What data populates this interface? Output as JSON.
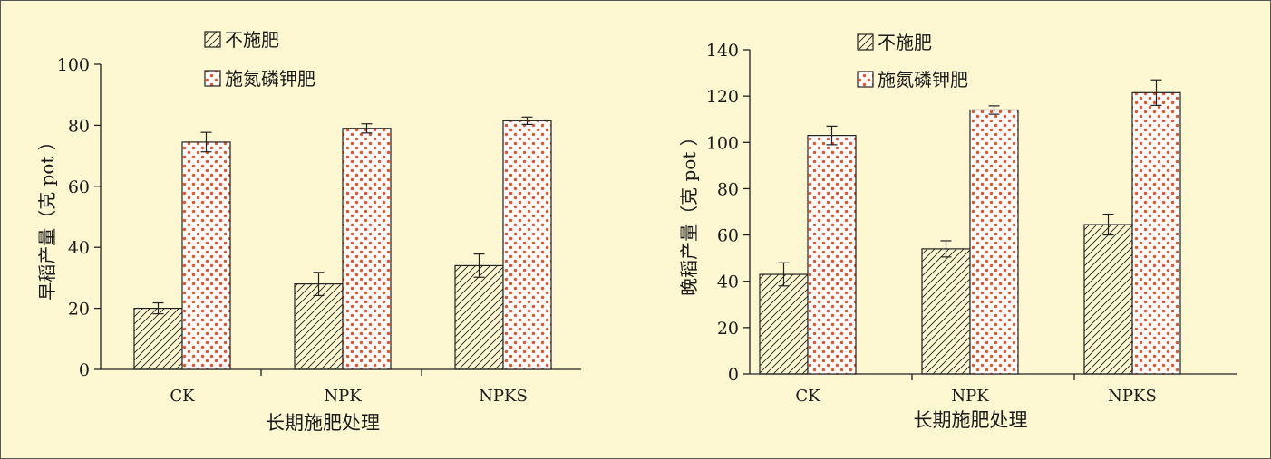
{
  "chart_data": [
    {
      "type": "bar",
      "xlabel": "长期施肥处理",
      "ylabel": "早稻产量（克 pot ）",
      "categories": [
        "CK",
        "NPK",
        "NPKS"
      ],
      "ylim": [
        0,
        100
      ],
      "yticks": [
        0,
        20,
        40,
        60,
        80,
        100
      ],
      "legend_position": "top-center",
      "series": [
        {
          "name": "不施肥",
          "pattern": "hatch",
          "values": [
            20,
            28,
            34
          ],
          "errors": [
            1.8,
            3.8,
            3.8
          ]
        },
        {
          "name": "施氮磷钾肥",
          "pattern": "dots",
          "color": "#e8542a",
          "values": [
            74.5,
            79,
            81.5
          ],
          "errors": [
            3.2,
            1.5,
            1.2
          ]
        }
      ]
    },
    {
      "type": "bar",
      "xlabel": "长期施肥处理",
      "ylabel": "晚稻产量（克 pot ）",
      "categories": [
        "CK",
        "NPK",
        "NPKS"
      ],
      "ylim": [
        0,
        140
      ],
      "yticks": [
        0,
        20,
        40,
        60,
        80,
        100,
        120,
        140
      ],
      "legend_position": "top-center",
      "series": [
        {
          "name": "不施肥",
          "pattern": "hatch",
          "values": [
            43,
            54,
            64.5
          ],
          "errors": [
            5,
            3.5,
            4.5
          ]
        },
        {
          "name": "施氮磷钾肥",
          "pattern": "dots",
          "color": "#e8542a",
          "values": [
            103,
            114,
            121.5
          ],
          "errors": [
            4,
            1.8,
            5.5
          ]
        }
      ]
    }
  ]
}
